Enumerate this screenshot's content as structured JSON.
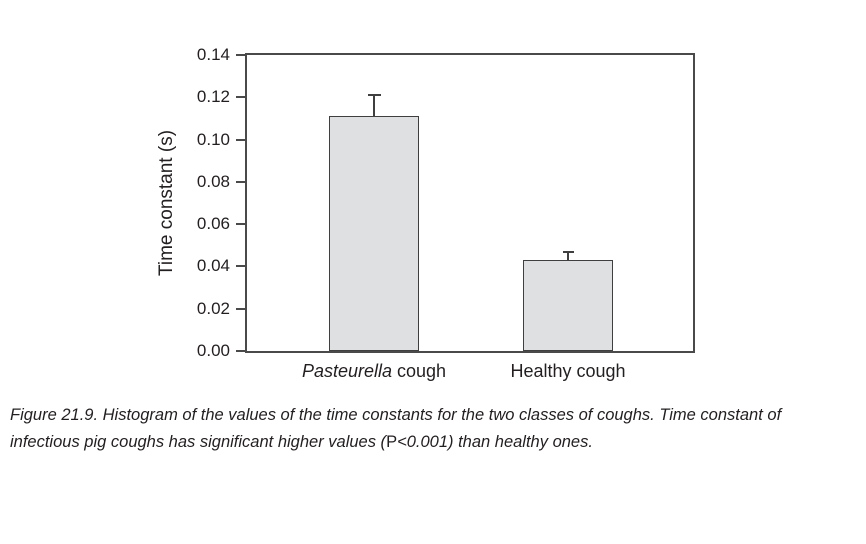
{
  "figure": {
    "caption_line1": "Figure 21.9. Histogram of the values of the time constants for the two classes of coughs. Time constant of",
    "caption_line2_pre": "infectious pig coughs has significant higher values (",
    "caption_line2_p": "P",
    "caption_line2_post": "<0.001) than healthy ones."
  },
  "chart_data": {
    "type": "bar",
    "categories": [
      "Pasteurella cough",
      "Healthy cough"
    ],
    "category_italic_words": [
      "Pasteurella",
      ""
    ],
    "values": [
      0.111,
      0.043
    ],
    "error_upper": [
      0.01,
      0.004
    ],
    "title": "",
    "xlabel": "",
    "ylabel": "Time constant (s)",
    "ylim": [
      0,
      0.14
    ],
    "ytick_values": [
      0.0,
      0.02,
      0.04,
      0.06,
      0.08,
      0.1,
      0.12,
      0.14
    ],
    "grid": false,
    "legend": "none",
    "colors": {
      "bar_fill": "#dfe0e1",
      "bar_border": "#3f3f3f",
      "axis_frame": "#4a4a4a",
      "text": "#231f20",
      "background": "#ffffff"
    }
  }
}
